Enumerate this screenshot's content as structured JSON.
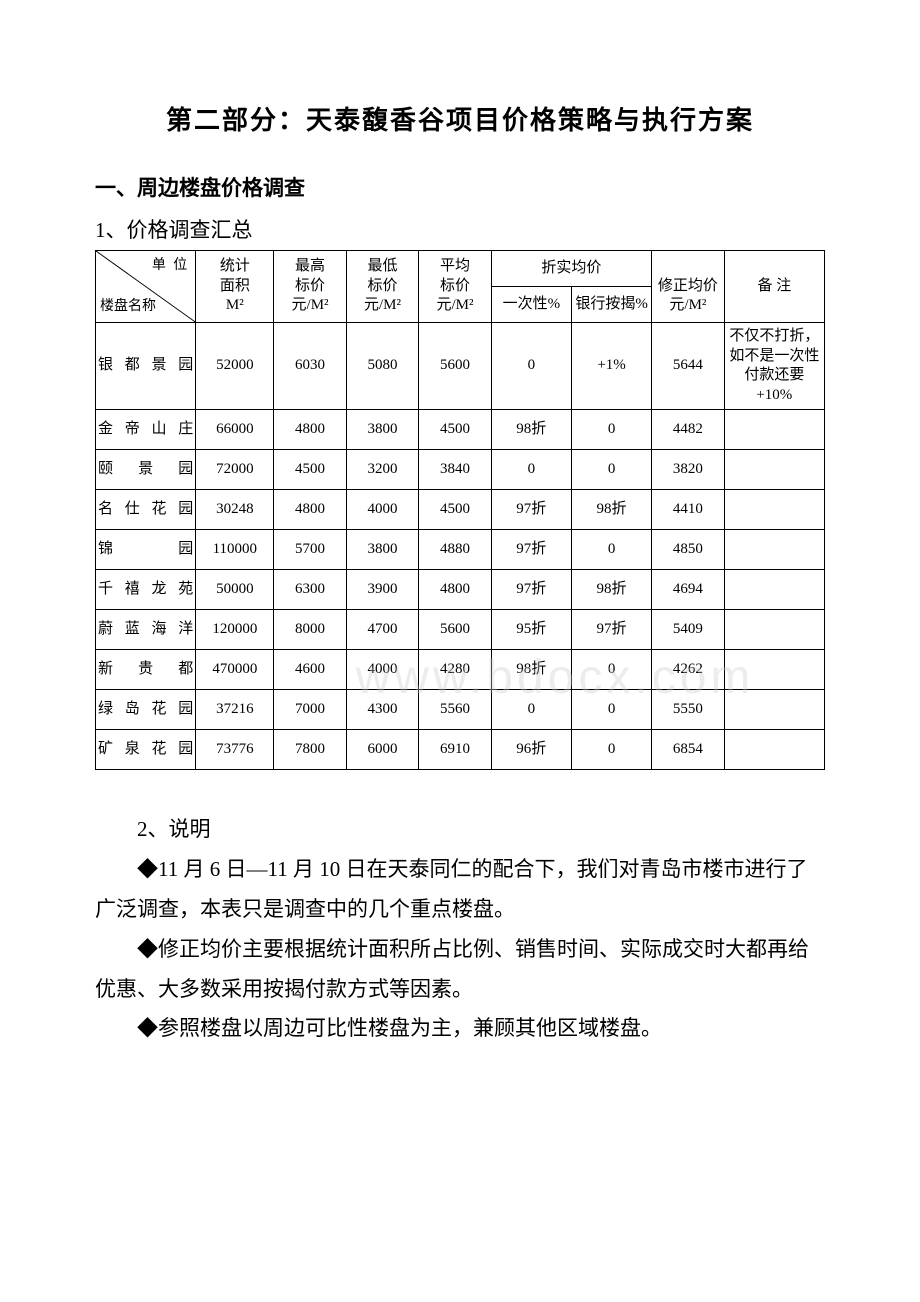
{
  "title": "第二部分：天泰馥香谷项目价格策略与执行方案",
  "section1": {
    "heading": "一、周边楼盘价格调查",
    "sub1": "1、价格调查汇总"
  },
  "table": {
    "header": {
      "diag_unit": "单 位",
      "diag_name": "楼盘名称",
      "stat_area_l1": "统计",
      "stat_area_l2": "面积",
      "stat_area_l3": "M²",
      "max_l1": "最高",
      "max_l2": "标价",
      "max_l3": "元/M²",
      "min_l1": "最低",
      "min_l2": "标价",
      "min_l3": "元/M²",
      "avg_l1": "平均",
      "avg_l2": "标价",
      "avg_l3": "元/M²",
      "disc_group": "折实均价",
      "disc_once": "一次性%",
      "disc_bank": "银行按揭%",
      "adj_l1": "修正均价",
      "adj_l2": "元/M²",
      "note": "备 注"
    },
    "rows": [
      {
        "name": "银都景园",
        "area": "52000",
        "max": "6030",
        "min": "5080",
        "avg": "5600",
        "once": "0",
        "bank": "+1%",
        "adj": "5644",
        "note": "不仅不打折，如不是一次性付款还要+10%"
      },
      {
        "name": "金帝山庄",
        "area": "66000",
        "max": "4800",
        "min": "3800",
        "avg": "4500",
        "once": "98折",
        "bank": "0",
        "adj": "4482",
        "note": ""
      },
      {
        "name": "颐 景 园",
        "area": "72000",
        "max": "4500",
        "min": "3200",
        "avg": "3840",
        "once": "0",
        "bank": "0",
        "adj": "3820",
        "note": ""
      },
      {
        "name": "名仕花园",
        "area": "30248",
        "max": "4800",
        "min": "4000",
        "avg": "4500",
        "once": "97折",
        "bank": "98折",
        "adj": "4410",
        "note": ""
      },
      {
        "name": "锦　　园",
        "area": "110000",
        "max": "5700",
        "min": "3800",
        "avg": "4880",
        "once": "97折",
        "bank": "0",
        "adj": "4850",
        "note": ""
      },
      {
        "name": "千禧龙苑",
        "area": "50000",
        "max": "6300",
        "min": "3900",
        "avg": "4800",
        "once": "97折",
        "bank": "98折",
        "adj": "4694",
        "note": ""
      },
      {
        "name": "蔚蓝海洋",
        "area": "120000",
        "max": "8000",
        "min": "4700",
        "avg": "5600",
        "once": "95折",
        "bank": "97折",
        "adj": "5409",
        "note": ""
      },
      {
        "name": "新 贵 都",
        "area": "470000",
        "max": "4600",
        "min": "4000",
        "avg": "4280",
        "once": "98折",
        "bank": "0",
        "adj": "4262",
        "note": ""
      },
      {
        "name": "绿岛花园",
        "area": "37216",
        "max": "7000",
        "min": "4300",
        "avg": "5560",
        "once": "0",
        "bank": "0",
        "adj": "5550",
        "note": ""
      },
      {
        "name": "矿泉花园",
        "area": "73776",
        "max": "7800",
        "min": "6000",
        "avg": "6910",
        "once": "96折",
        "bank": "0",
        "adj": "6854",
        "note": ""
      }
    ]
  },
  "paragraphs": {
    "p2_label": "2、说明",
    "p2a": "◆11 月 6 日—11 月 10 日在天泰同仁的配合下，我们对青岛市楼市进行了广泛调查，本表只是调查中的几个重点楼盘。",
    "p2b": "◆修正均价主要根据统计面积所占比例、销售时间、实际成交时大都再给优惠、大多数采用按揭付款方式等因素。",
    "p2c": "◆参照楼盘以周边可比性楼盘为主，兼顾其他区域楼盘。"
  },
  "watermark": "www.bdocx.com"
}
